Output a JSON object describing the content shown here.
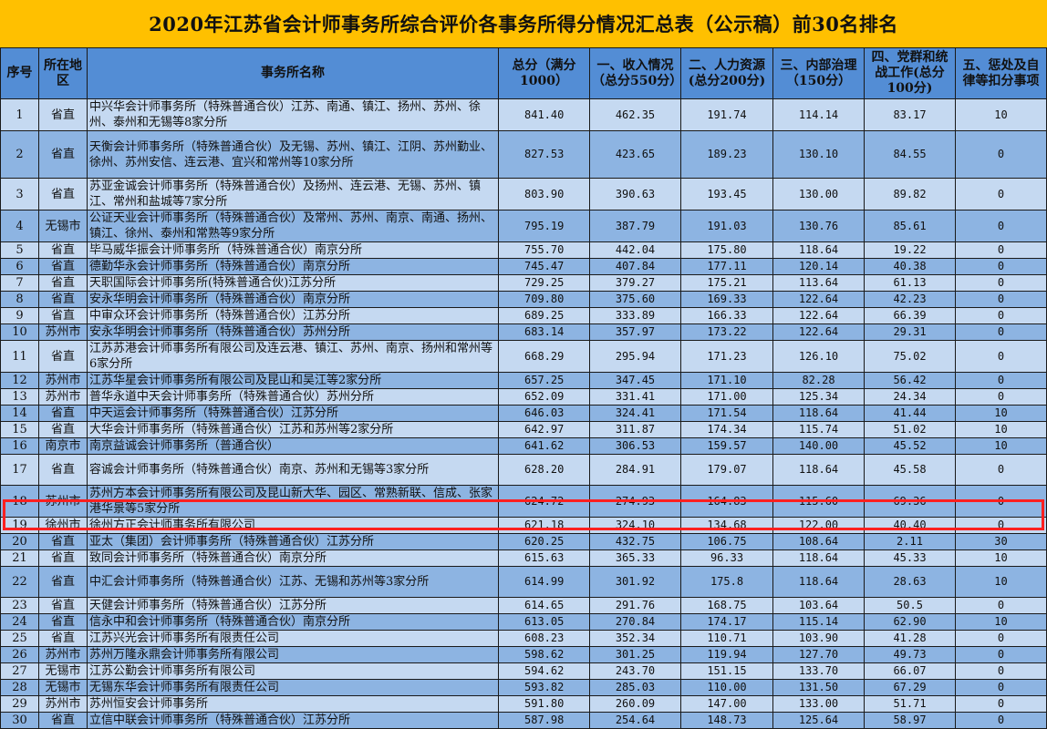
{
  "title": "2020年江苏省会计师事务所综合评价各事务所得分情况汇总表（公示稿）前30名排名",
  "headers": [
    "序号",
    "所在地区",
    "事务所名称",
    "总分（满分1000）",
    "一、收入情况（总分550分）",
    "二、人力资源(总分200分)",
    "三、内部治理（150分）",
    "四、党群和统战工作(总分100分)",
    "五、惩处及自律等扣分事项"
  ],
  "highlighted_rank": 19,
  "colors": {
    "title_bg": "#FFC000",
    "header_bg": "#538DD5",
    "row_light": "#C5D9F1",
    "row_dark": "#8DB4E2",
    "highlight": "#FF2020"
  },
  "rows": [
    [
      "1",
      "省直",
      "中兴华会计师事务所（特殊普通合伙）江苏、南通、镇江、扬州、苏州、徐州、泰州和无锡等8家分所",
      "841.40",
      "462.35",
      "191.74",
      "114.14",
      "83.17",
      "10"
    ],
    [
      "2",
      "省直",
      "天衡会计师事务所（特殊普通合伙）及无锡、苏州、镇江、江阴、苏州勤业、徐州、苏州安信、连云港、宜兴和常州等10家分所",
      "827.53",
      "423.65",
      "189.23",
      "130.10",
      "84.55",
      "0"
    ],
    [
      "3",
      "省直",
      "苏亚金诚会计师事务所（特殊普通合伙）及扬州、连云港、无锡、苏州、镇江、常州和盐城等7家分所",
      "803.90",
      "390.63",
      "193.45",
      "130.00",
      "89.82",
      "0"
    ],
    [
      "4",
      "无锡市",
      "公证天业会计师事务所（特殊普通合伙）及常州、苏州、南京、南通、扬州、镇江、徐州、泰州和常熟等9家分所",
      "795.19",
      "387.79",
      "191.03",
      "130.76",
      "85.61",
      "0"
    ],
    [
      "5",
      "省直",
      "毕马威华振会计师事务所（特殊普通合伙）南京分所",
      "755.70",
      "442.04",
      "175.80",
      "118.64",
      "19.22",
      "0"
    ],
    [
      "6",
      "省直",
      "德勤华永会计师事务所（特殊普通合伙）南京分所",
      "745.47",
      "407.84",
      "177.11",
      "120.14",
      "40.38",
      "0"
    ],
    [
      "7",
      "省直",
      "天职国际会计师事务所(特殊普通合伙)江苏分所",
      "729.25",
      "379.27",
      "175.21",
      "113.64",
      "61.13",
      "0"
    ],
    [
      "8",
      "省直",
      "安永华明会计师事务所（特殊普通合伙）南京分所",
      "709.80",
      "375.60",
      "169.33",
      "122.64",
      "42.23",
      "0"
    ],
    [
      "9",
      "省直",
      "中审众环会计师事务所（特殊普通合伙）江苏分所",
      "689.25",
      "333.89",
      "166.33",
      "122.64",
      "66.39",
      "0"
    ],
    [
      "10",
      "苏州市",
      "安永华明会计师事务所（特殊普通合伙）苏州分所",
      "683.14",
      "357.97",
      "173.22",
      "122.64",
      "29.31",
      "0"
    ],
    [
      "11",
      "省直",
      "江苏苏港会计师事务所有限公司及连云港、镇江、苏州、南京、扬州和常州等6家分所",
      "668.29",
      "295.94",
      "171.23",
      "126.10",
      "75.02",
      "0"
    ],
    [
      "12",
      "苏州市",
      "江苏华星会计师事务所有限公司及昆山和吴江等2家分所",
      "657.25",
      "347.45",
      "171.10",
      "82.28",
      "56.42",
      "0"
    ],
    [
      "13",
      "苏州市",
      "普华永道中天会计师事务所（特殊普通合伙）苏州分所",
      "652.09",
      "331.41",
      "171.00",
      "125.34",
      "24.34",
      "0"
    ],
    [
      "14",
      "省直",
      "中天运会计师事务所（特殊普通合伙）江苏分所",
      "646.03",
      "324.41",
      "171.54",
      "118.64",
      "41.44",
      "10"
    ],
    [
      "15",
      "省直",
      "大华会计师事务所（特殊普通合伙）江苏和苏州等2家分所",
      "642.97",
      "311.87",
      "174.34",
      "115.74",
      "51.02",
      "10"
    ],
    [
      "16",
      "南京市",
      "南京益诚会计师事务所（普通合伙）",
      "641.62",
      "306.53",
      "159.57",
      "140.00",
      "45.52",
      "10"
    ],
    [
      "17",
      "省直",
      "容诚会计师事务所（特殊普通合伙）南京、苏州和无锡等3家分所",
      "628.20",
      "284.91",
      "179.07",
      "118.64",
      "45.58",
      "0"
    ],
    [
      "18",
      "苏州市",
      "苏州方本会计师事务所有限公司及昆山新大华、园区、常熟新联、信成、张家港华景等5家分所",
      "624.72",
      "274.93",
      "164.83",
      "115.60",
      "69.36",
      "0"
    ],
    [
      "19",
      "徐州市",
      "徐州方正会计师事务所有限公司",
      "621.18",
      "324.10",
      "134.68",
      "122.00",
      "40.40",
      "0"
    ],
    [
      "20",
      "省直",
      "亚太（集团）会计师事务所（特殊普通合伙）江苏分所",
      "620.25",
      "432.75",
      "106.75",
      "108.64",
      "2.11",
      "30"
    ],
    [
      "21",
      "省直",
      "致同会计师事务所（特殊普通合伙）南京分所",
      "615.63",
      "365.33",
      "96.33",
      "118.64",
      "45.33",
      "10"
    ],
    [
      "22",
      "省直",
      "中汇会计师事务所（特殊普通合伙）江苏、无锡和苏州等3家分所",
      "614.99",
      "301.92",
      "175.8",
      "118.64",
      "28.63",
      "10"
    ],
    [
      "23",
      "省直",
      "天健会计师事务所（特殊普通合伙）江苏分所",
      "614.65",
      "291.76",
      "168.75",
      "103.64",
      "50.5",
      "0"
    ],
    [
      "24",
      "省直",
      "信永中和会计师事务所（特殊普通合伙）南京分所",
      "613.05",
      "270.84",
      "174.17",
      "115.14",
      "62.90",
      "10"
    ],
    [
      "25",
      "省直",
      "江苏兴光会计师事务所有限责任公司",
      "608.23",
      "352.34",
      "110.71",
      "103.90",
      "41.28",
      "0"
    ],
    [
      "26",
      "苏州市",
      "苏州万隆永鼎会计师事务所有限公司",
      "598.62",
      "301.25",
      "119.94",
      "127.70",
      "49.73",
      "0"
    ],
    [
      "27",
      "无锡市",
      "江苏公勤会计师事务所有限公司",
      "594.62",
      "243.70",
      "151.15",
      "133.70",
      "66.07",
      "0"
    ],
    [
      "28",
      "无锡市",
      "无锡东华会计师事务所有限责任公司",
      "593.82",
      "285.03",
      "110.00",
      "131.50",
      "67.29",
      "0"
    ],
    [
      "29",
      "苏州市",
      "苏州恒安会计师事务所",
      "591.80",
      "260.09",
      "147.00",
      "133.00",
      "51.71",
      "0"
    ],
    [
      "30",
      "省直",
      "立信中联会计师事务所（特殊普通合伙）江苏分所",
      "587.98",
      "254.64",
      "148.73",
      "125.64",
      "58.97",
      "0"
    ]
  ]
}
